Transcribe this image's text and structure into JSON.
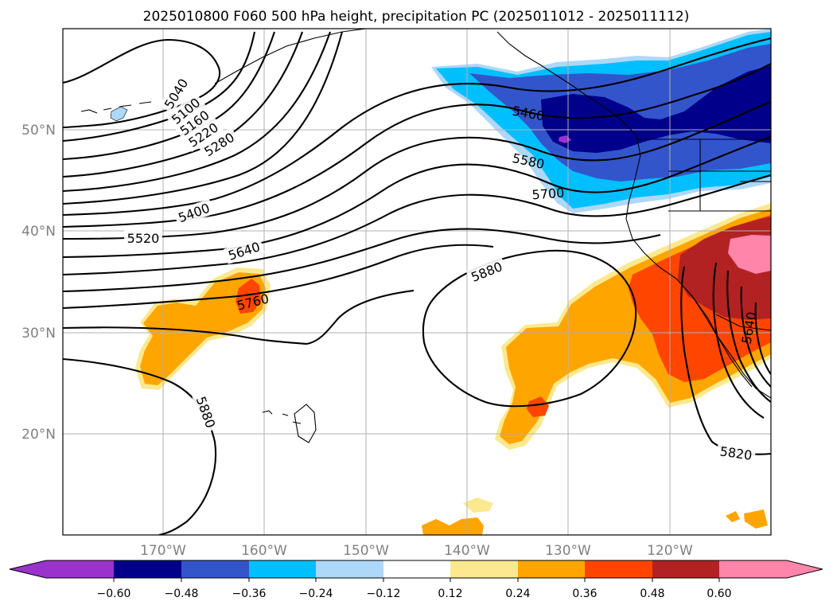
{
  "title": "2025010800 F060 500 hPa height, precipitation PC (2025011012 - 2025011112)",
  "colors": {
    "very_neg": "#9933cc",
    "neg_060": "#00008b",
    "neg_048": "#3355cc",
    "neg_036": "#00bfff",
    "neg_024": "#add8f7",
    "pos_012": "#fce98f",
    "pos_024": "#ffa500",
    "pos_036": "#ff4500",
    "pos_048": "#b22222",
    "pos_060": "#ff85aa",
    "gridline": "#b0b0b0",
    "axis_label": "#808080"
  },
  "lat_labels": [
    "50°N",
    "40°N",
    "30°N",
    "20°N"
  ],
  "lon_labels": [
    "170°W",
    "160°W",
    "150°W",
    "140°W",
    "130°W",
    "120°W"
  ],
  "contour_labels": [
    "5040",
    "5100",
    "5160",
    "5220",
    "5280",
    "5400",
    "5520",
    "5640",
    "5760",
    "5880",
    "5460",
    "5580",
    "5700",
    "5880",
    "5880",
    "5820",
    "5640"
  ],
  "colorbar": {
    "tick_labels": [
      "−0.60",
      "−0.48",
      "−0.36",
      "−0.24",
      "−0.12",
      "0.12",
      "0.24",
      "0.36",
      "0.48",
      "0.60"
    ],
    "bounds": [
      -0.6,
      -0.48,
      -0.36,
      -0.24,
      -0.12,
      0.12,
      0.24,
      0.36,
      0.48,
      0.6
    ],
    "extend": "both"
  }
}
